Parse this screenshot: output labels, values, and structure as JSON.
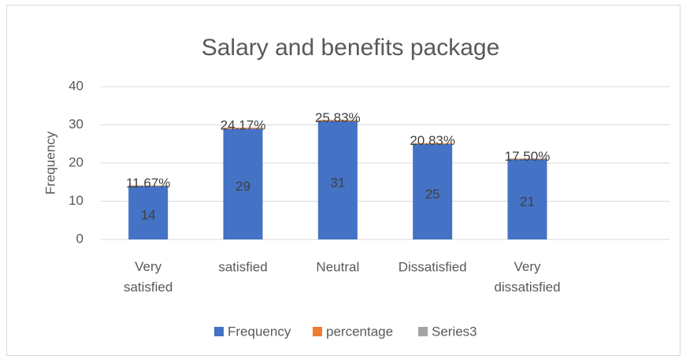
{
  "chart_data": {
    "type": "bar",
    "stacked": true,
    "title": "Salary and benefits package",
    "y_label": "Frequency",
    "categories": [
      "Very satisfied",
      "satisfied",
      "Neutral",
      "Dissatisfied",
      "Very dissatisfied",
      null
    ],
    "series": [
      {
        "name": "Frequency",
        "color": "#4472c4",
        "values": [
          14,
          29,
          31,
          25,
          21,
          null
        ]
      },
      {
        "name": "percentage",
        "color": "#ed7d31",
        "values": [
          0.1167,
          0.2417,
          0.2583,
          0.2083,
          0.175,
          null
        ],
        "value_labels": [
          "11.67%",
          "24.17%",
          "25.83%",
          "20.83%",
          "17.50%",
          null
        ]
      },
      {
        "name": "Series3",
        "color": "#a5a5a5",
        "values": [
          null,
          null,
          null,
          null,
          null,
          null
        ]
      }
    ],
    "ylim": [
      0,
      40
    ],
    "yticks": [
      0,
      10,
      20,
      30,
      40
    ],
    "grid": true,
    "legend": "bottom"
  }
}
